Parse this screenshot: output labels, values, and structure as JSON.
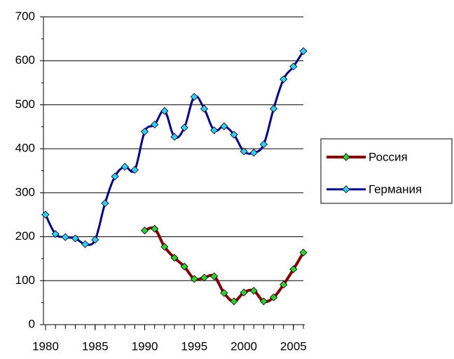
{
  "chart_data": {
    "type": "line",
    "x": [
      1980,
      1981,
      1982,
      1983,
      1984,
      1985,
      1986,
      1987,
      1988,
      1989,
      1990,
      1991,
      1992,
      1993,
      1994,
      1995,
      1996,
      1997,
      1998,
      1999,
      2000,
      2001,
      2002,
      2003,
      2004,
      2005,
      2006
    ],
    "series": [
      {
        "name": "Россия",
        "color": "#800000",
        "marker_color": "#33cc33",
        "values": [
          null,
          null,
          null,
          null,
          null,
          null,
          null,
          null,
          null,
          null,
          214,
          218,
          177,
          152,
          132,
          104,
          107,
          110,
          72,
          53,
          73,
          77,
          53,
          62,
          91,
          126,
          164
        ]
      },
      {
        "name": "Германия",
        "color": "#000080",
        "marker_color": "#33ccff",
        "values": [
          250,
          206,
          199,
          196,
          183,
          193,
          276,
          337,
          359,
          352,
          439,
          455,
          486,
          427,
          448,
          518,
          491,
          442,
          451,
          432,
          394,
          391,
          410,
          491,
          558,
          587,
          622
        ]
      }
    ],
    "xlim": [
      1980,
      2006
    ],
    "xticks": [
      1980,
      1985,
      1990,
      1995,
      2000,
      2005
    ],
    "ylim": [
      0,
      700
    ],
    "yticks": [
      0,
      100,
      200,
      300,
      400,
      500,
      600,
      700
    ],
    "grid": true,
    "legend": "right"
  }
}
